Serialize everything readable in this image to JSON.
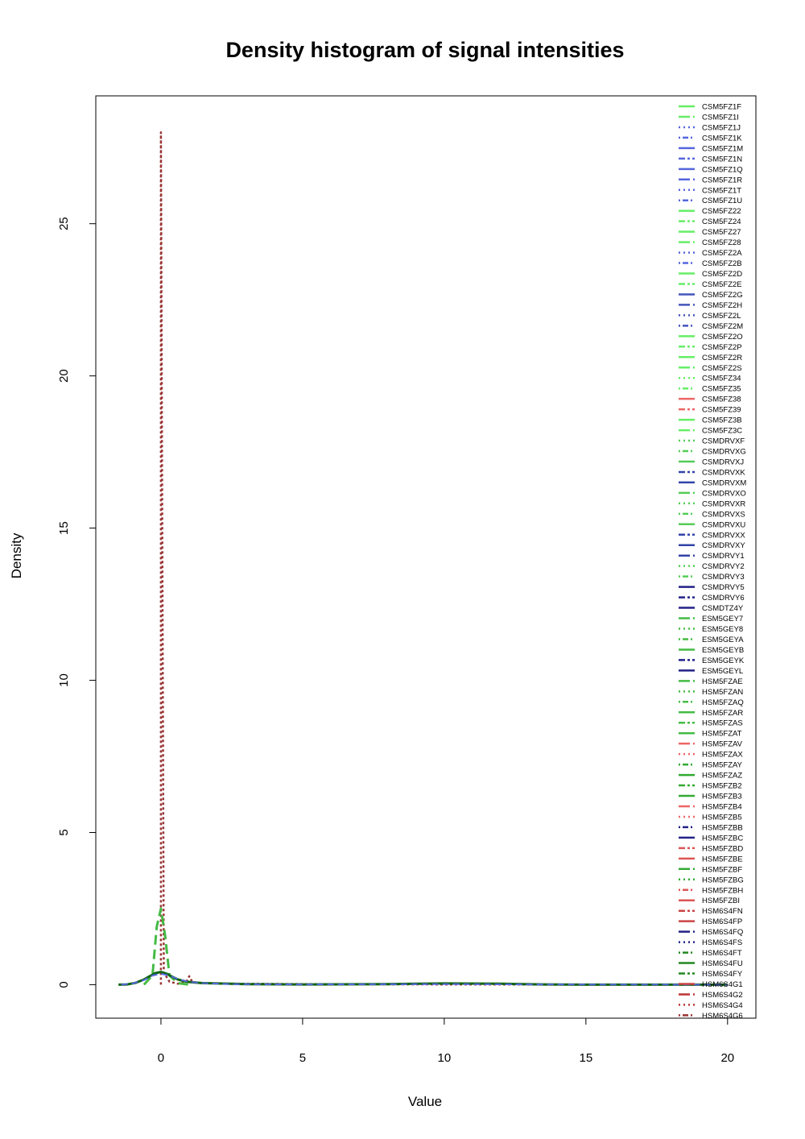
{
  "chart_data": {
    "type": "line",
    "title": "Density histogram of signal intensities",
    "xlabel": "Value",
    "ylabel": "Density",
    "xlim": [
      -2.3,
      21.0
    ],
    "ylim": [
      -1.1,
      29.2
    ],
    "x_ticks": [
      0,
      5,
      10,
      15,
      20
    ],
    "y_ticks": [
      0,
      5,
      10,
      15,
      20,
      25
    ],
    "legend_position": "top-right",
    "grid": false,
    "colors": {
      "light_green": "#66ee66",
      "blue": "#5566dd",
      "red": "#ee6666",
      "mid_green": "#44bb44",
      "dark_blue": "#222288",
      "dark_red": "#993333",
      "dark_green": "#116611"
    },
    "x_grid": [
      -1.5,
      -1.2,
      -0.9,
      -0.6,
      -0.4,
      -0.2,
      -0.1,
      0,
      0.1,
      0.2,
      0.4,
      0.6,
      0.8,
      1.0,
      1.2,
      1.5,
      2,
      3,
      4,
      5,
      6,
      7,
      8,
      9,
      10,
      11,
      12,
      13,
      14,
      15,
      16,
      17,
      18,
      19,
      20
    ],
    "series": [
      {
        "name": "HSM6S4G6",
        "color": "#993333",
        "dash": "3,3",
        "width": 2.5,
        "x": [
          0,
          0,
          0.1,
          0.3,
          0.6,
          0.9,
          1.0,
          1.1,
          1.4,
          2,
          3,
          5,
          10,
          20
        ],
        "y": [
          0,
          28.0,
          0.4,
          0.1,
          0.03,
          0.1,
          0.28,
          0.1,
          0.05,
          0.04,
          0.03,
          0.02,
          0.01,
          0.0
        ]
      },
      {
        "name": "HSM5FZB3",
        "color": "#44bb44",
        "dash": "12,6",
        "width": 3,
        "x": [
          -0.6,
          -0.3,
          -0.15,
          0,
          0.15,
          0.3,
          0.6,
          1.0
        ],
        "y": [
          0,
          0.3,
          1.9,
          2.5,
          1.6,
          0.3,
          0.05,
          0
        ]
      },
      {
        "name": "HSM6S4FU",
        "color": "#116611",
        "dash": "",
        "width": 3,
        "x": [
          -1.5,
          -1.2,
          -0.9,
          -0.6,
          -0.4,
          -0.2,
          0,
          0.2,
          0.4,
          0.6,
          0.9,
          1.2,
          1.5,
          2,
          3,
          5,
          8,
          10,
          12,
          13.5,
          15,
          20
        ],
        "y": [
          0,
          0.01,
          0.06,
          0.17,
          0.28,
          0.38,
          0.42,
          0.36,
          0.26,
          0.17,
          0.1,
          0.07,
          0.05,
          0.04,
          0.02,
          0.01,
          0.02,
          0.04,
          0.03,
          0.01,
          0.0,
          0.0
        ]
      },
      {
        "name": "CSMDRVXM",
        "color": "#5566dd",
        "dash": "8,5",
        "width": 2,
        "x": [
          -1.4,
          -1.0,
          -0.6,
          -0.3,
          0,
          0.3,
          0.6,
          1.0,
          1.5,
          2.5,
          5,
          10,
          13,
          20
        ],
        "y": [
          0,
          0.04,
          0.15,
          0.3,
          0.36,
          0.3,
          0.18,
          0.09,
          0.05,
          0.02,
          0.01,
          0.02,
          0.01,
          0.0
        ]
      }
    ],
    "legend": [
      {
        "label": "CSM5FZ1F",
        "color": "#66ee66",
        "dash": "solid"
      },
      {
        "label": "CSM5FZ1I",
        "color": "#66ee66",
        "dash": "longdash"
      },
      {
        "label": "CSM5FZ1J",
        "color": "#5566dd",
        "dash": "dotted"
      },
      {
        "label": "CSM5FZ1K",
        "color": "#5566dd",
        "dash": "dotdash"
      },
      {
        "label": "CSM5FZ1M",
        "color": "#5566dd",
        "dash": "solid"
      },
      {
        "label": "CSM5FZ1N",
        "color": "#5566dd",
        "dash": "twodash"
      },
      {
        "label": "CSM5FZ1Q",
        "color": "#5566dd",
        "dash": "solid"
      },
      {
        "label": "CSM5FZ1R",
        "color": "#5566dd",
        "dash": "longdash"
      },
      {
        "label": "CSM5FZ1T",
        "color": "#5566dd",
        "dash": "dotted"
      },
      {
        "label": "CSM5FZ1U",
        "color": "#5566dd",
        "dash": "dotdash"
      },
      {
        "label": "CSM5FZ22",
        "color": "#66ee66",
        "dash": "solid"
      },
      {
        "label": "CSM5FZ24",
        "color": "#66ee66",
        "dash": "twodash"
      },
      {
        "label": "CSM5FZ27",
        "color": "#66ee66",
        "dash": "solid"
      },
      {
        "label": "CSM5FZ28",
        "color": "#66ee66",
        "dash": "longdash"
      },
      {
        "label": "CSM5FZ2A",
        "color": "#5566dd",
        "dash": "dotted"
      },
      {
        "label": "CSM5FZ2B",
        "color": "#5566dd",
        "dash": "dotdash"
      },
      {
        "label": "CSM5FZ2D",
        "color": "#66ee66",
        "dash": "solid"
      },
      {
        "label": "CSM5FZ2E",
        "color": "#66ee66",
        "dash": "twodash"
      },
      {
        "label": "CSM5FZ2G",
        "color": "#4455bb",
        "dash": "solid"
      },
      {
        "label": "CSM5FZ2H",
        "color": "#4455bb",
        "dash": "longdash"
      },
      {
        "label": "CSM5FZ2L",
        "color": "#4455bb",
        "dash": "dotted"
      },
      {
        "label": "CSM5FZ2M",
        "color": "#4455bb",
        "dash": "dotdash"
      },
      {
        "label": "CSM5FZ2O",
        "color": "#66ee66",
        "dash": "solid"
      },
      {
        "label": "CSM5FZ2P",
        "color": "#66ee66",
        "dash": "twodash"
      },
      {
        "label": "CSM5FZ2R",
        "color": "#66ee66",
        "dash": "solid"
      },
      {
        "label": "CSM5FZ2S",
        "color": "#66ee66",
        "dash": "longdash"
      },
      {
        "label": "CSM5FZ34",
        "color": "#66ee66",
        "dash": "dotted"
      },
      {
        "label": "CSM5FZ35",
        "color": "#66ee66",
        "dash": "dotdash"
      },
      {
        "label": "CSM5FZ38",
        "color": "#ee6666",
        "dash": "solid"
      },
      {
        "label": "CSM5FZ39",
        "color": "#ee6666",
        "dash": "twodash"
      },
      {
        "label": "CSM5FZ3B",
        "color": "#66ee66",
        "dash": "solid"
      },
      {
        "label": "CSM5FZ3C",
        "color": "#66ee66",
        "dash": "longdash"
      },
      {
        "label": "CSMDRVXF",
        "color": "#55cc55",
        "dash": "dotted"
      },
      {
        "label": "CSMDRVXG",
        "color": "#55cc55",
        "dash": "dotdash"
      },
      {
        "label": "CSMDRVXJ",
        "color": "#55cc55",
        "dash": "solid"
      },
      {
        "label": "CSMDRVXK",
        "color": "#3344aa",
        "dash": "twodash"
      },
      {
        "label": "CSMDRVXM",
        "color": "#3344aa",
        "dash": "solid"
      },
      {
        "label": "CSMDRVXO",
        "color": "#55cc55",
        "dash": "longdash"
      },
      {
        "label": "CSMDRVXR",
        "color": "#55cc55",
        "dash": "dotted"
      },
      {
        "label": "CSMDRVXS",
        "color": "#55cc55",
        "dash": "dotdash"
      },
      {
        "label": "CSMDRVXU",
        "color": "#55cc55",
        "dash": "solid"
      },
      {
        "label": "CSMDRVXX",
        "color": "#3344aa",
        "dash": "twodash"
      },
      {
        "label": "CSMDRVXY",
        "color": "#3344aa",
        "dash": "solid"
      },
      {
        "label": "CSMDRVY1",
        "color": "#3344aa",
        "dash": "longdash"
      },
      {
        "label": "CSMDRVY2",
        "color": "#55cc55",
        "dash": "dotted"
      },
      {
        "label": "CSMDRVY3",
        "color": "#55cc55",
        "dash": "dotdash"
      },
      {
        "label": "CSMDRVY5",
        "color": "#222288",
        "dash": "solid"
      },
      {
        "label": "CSMDRVY6",
        "color": "#222288",
        "dash": "twodash"
      },
      {
        "label": "CSMDTZ4Y",
        "color": "#222288",
        "dash": "solid"
      },
      {
        "label": "ESM5GEY7",
        "color": "#44bb44",
        "dash": "longdash"
      },
      {
        "label": "ESM5GEY8",
        "color": "#44bb44",
        "dash": "dotted"
      },
      {
        "label": "ESM5GEYA",
        "color": "#44bb44",
        "dash": "dotdash"
      },
      {
        "label": "ESM5GEYB",
        "color": "#44bb44",
        "dash": "solid"
      },
      {
        "label": "ESM5GEYK",
        "color": "#222288",
        "dash": "twodash"
      },
      {
        "label": "ESM5GEYL",
        "color": "#222288",
        "dash": "solid"
      },
      {
        "label": "HSM5FZAE",
        "color": "#44bb44",
        "dash": "longdash"
      },
      {
        "label": "HSM5FZAN",
        "color": "#44bb44",
        "dash": "dotted"
      },
      {
        "label": "HSM5FZAQ",
        "color": "#44bb44",
        "dash": "dotdash"
      },
      {
        "label": "HSM5FZAR",
        "color": "#44bb44",
        "dash": "solid"
      },
      {
        "label": "HSM5FZAS",
        "color": "#44bb44",
        "dash": "twodash"
      },
      {
        "label": "HSM5FZAT",
        "color": "#44bb44",
        "dash": "solid"
      },
      {
        "label": "HSM5FZAV",
        "color": "#ee6666",
        "dash": "longdash"
      },
      {
        "label": "HSM5FZAX",
        "color": "#ee6666",
        "dash": "dotted"
      },
      {
        "label": "HSM5FZAY",
        "color": "#33aa33",
        "dash": "dotdash"
      },
      {
        "label": "HSM5FZAZ",
        "color": "#33aa33",
        "dash": "solid"
      },
      {
        "label": "HSM5FZB2",
        "color": "#33aa33",
        "dash": "twodash"
      },
      {
        "label": "HSM5FZB3",
        "color": "#33aa33",
        "dash": "solid"
      },
      {
        "label": "HSM5FZB4",
        "color": "#ee6666",
        "dash": "longdash"
      },
      {
        "label": "HSM5FZB5",
        "color": "#ee6666",
        "dash": "dotted"
      },
      {
        "label": "HSM5FZBB",
        "color": "#222288",
        "dash": "dotdash"
      },
      {
        "label": "HSM5FZBC",
        "color": "#222288",
        "dash": "solid"
      },
      {
        "label": "HSM5FZBD",
        "color": "#dd5555",
        "dash": "twodash"
      },
      {
        "label": "HSM5FZBE",
        "color": "#dd5555",
        "dash": "solid"
      },
      {
        "label": "HSM5FZBF",
        "color": "#33aa33",
        "dash": "longdash"
      },
      {
        "label": "HSM5FZBG",
        "color": "#33aa33",
        "dash": "dotted"
      },
      {
        "label": "HSM5FZBH",
        "color": "#dd5555",
        "dash": "dotdash"
      },
      {
        "label": "HSM5FZBI",
        "color": "#dd5555",
        "dash": "solid"
      },
      {
        "label": "HSM6S4FN",
        "color": "#cc4444",
        "dash": "twodash"
      },
      {
        "label": "HSM6S4FP",
        "color": "#cc4444",
        "dash": "solid"
      },
      {
        "label": "HSM6S4FQ",
        "color": "#222288",
        "dash": "longdash"
      },
      {
        "label": "HSM6S4FS",
        "color": "#222288",
        "dash": "dotted"
      },
      {
        "label": "HSM6S4FT",
        "color": "#228822",
        "dash": "dotdash"
      },
      {
        "label": "HSM6S4FU",
        "color": "#228822",
        "dash": "solid"
      },
      {
        "label": "HSM6S4FY",
        "color": "#228822",
        "dash": "twodash"
      },
      {
        "label": "HSM6S4G1",
        "color": "#cc4444",
        "dash": "solid"
      },
      {
        "label": "HSM6S4G2",
        "color": "#bb3333",
        "dash": "longdash"
      },
      {
        "label": "HSM6S4G4",
        "color": "#bb3333",
        "dash": "dotted"
      },
      {
        "label": "HSM6S4G6",
        "color": "#993333",
        "dash": "dotdash"
      }
    ]
  }
}
